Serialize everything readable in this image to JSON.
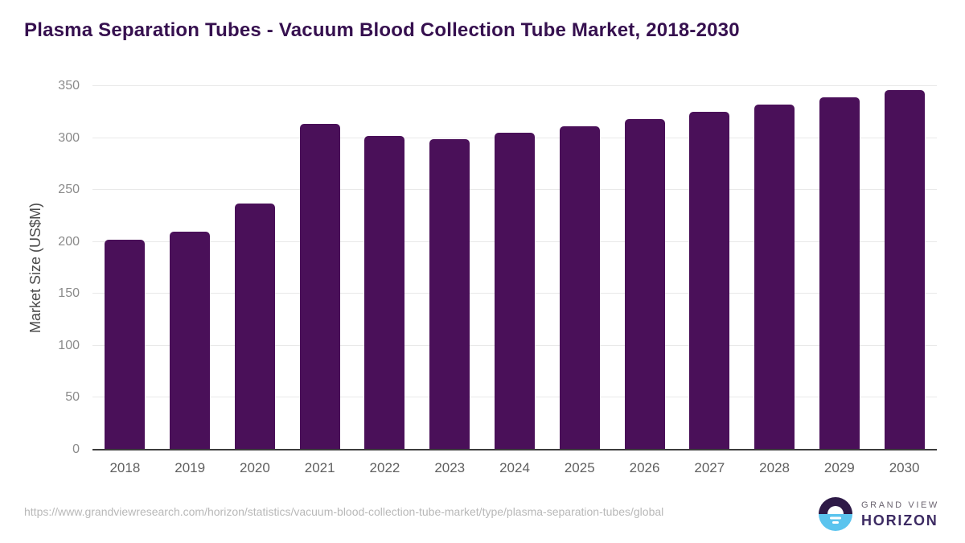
{
  "chart_data": {
    "type": "bar",
    "title": "Plasma Separation Tubes - Vacuum Blood Collection Tube Market, 2018-2030",
    "categories": [
      "2018",
      "2019",
      "2020",
      "2021",
      "2022",
      "2023",
      "2024",
      "2025",
      "2026",
      "2027",
      "2028",
      "2029",
      "2030"
    ],
    "values": [
      202,
      210,
      237,
      314,
      302,
      299,
      305,
      311,
      318,
      325,
      332,
      339,
      346
    ],
    "xlabel": "",
    "ylabel": "Market Size (US$M)",
    "ylim": [
      0,
      350
    ],
    "yticks": [
      0,
      50,
      100,
      150,
      200,
      250,
      300,
      350
    ],
    "grid": true,
    "legend_position": "none"
  },
  "footer": {
    "source_url": "https://www.grandviewresearch.com/horizon/statistics/vacuum-blood-collection-tube-market/type/plasma-separation-tubes/global",
    "logo": {
      "icon": "horizon-sunrise-icon",
      "brand_line1": "GRAND VIEW",
      "brand_line2": "HORIZON"
    }
  },
  "colors": {
    "title": "#36104F",
    "bar": "#4A1059",
    "gridline": "#E9E9E9",
    "axis_line": "#3C3C3C",
    "y_tick_label": "#8B8B8B",
    "x_tick_label": "#606060",
    "axis_title": "#4A4A4A",
    "url_text": "#B8B8B8",
    "logo_circle_purple": "#2E1A47",
    "logo_circle_blue": "#5BC4EE",
    "logo_text_gray": "#6B6470",
    "logo_text_purple": "#3D2B63"
  }
}
